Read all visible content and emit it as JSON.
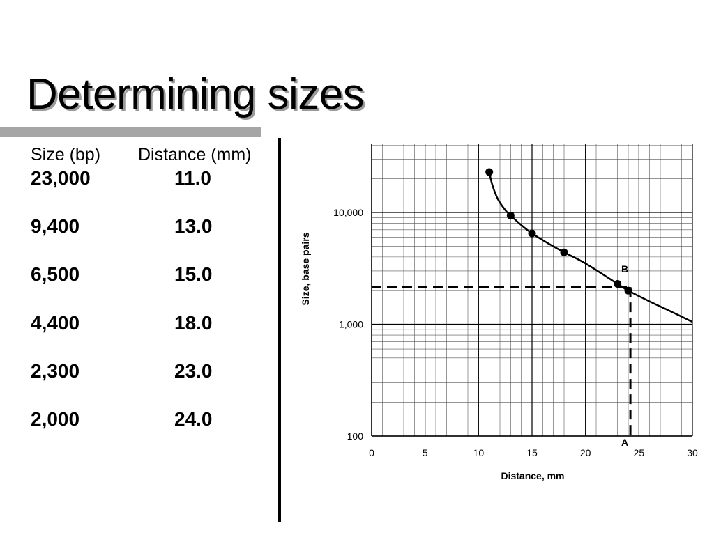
{
  "slide": {
    "title": "Determining sizes"
  },
  "table": {
    "headers": {
      "size": "Size (bp)",
      "distance": "Distance (mm)"
    },
    "rows": [
      {
        "size": "23,000",
        "distance": "11.0"
      },
      {
        "size": "9,400",
        "distance": "13.0"
      },
      {
        "size": "6,500",
        "distance": "15.0"
      },
      {
        "size": "4,400",
        "distance": "18.0"
      },
      {
        "size": "2,300",
        "distance": "23.0"
      },
      {
        "size": "2,000",
        "distance": "24.0"
      }
    ]
  },
  "chart_data": {
    "type": "scatter",
    "title": "",
    "xlabel": "Distance, mm",
    "ylabel": "Size, base pairs",
    "xlim": [
      0,
      30
    ],
    "ylim": [
      100,
      40000
    ],
    "y_scale": "log",
    "x_ticks": [
      0,
      5,
      10,
      15,
      20,
      25,
      30
    ],
    "y_ticks": [
      100,
      1000,
      10000
    ],
    "y_tick_labels": [
      "100",
      "1,000",
      "10,000"
    ],
    "grid": true,
    "series": [
      {
        "x": [
          11,
          13,
          15,
          18,
          23,
          24
        ],
        "y": [
          23000,
          9400,
          6500,
          4400,
          2300,
          2000
        ]
      }
    ],
    "curve": {
      "x": [
        11,
        11.3,
        11.8,
        12.5,
        13,
        14,
        15,
        16.5,
        18,
        20,
        23,
        24,
        26,
        28,
        30
      ],
      "y": [
        23000,
        17500,
        13200,
        10500,
        9400,
        7700,
        6500,
        5300,
        4400,
        3500,
        2300,
        2000,
        1600,
        1300,
        1050
      ]
    },
    "reference_lines": [
      {
        "label": "B",
        "y": 2150,
        "x_from": 0,
        "x_to": 24.2
      },
      {
        "label": "A",
        "x": 24.2,
        "y_from": 2150,
        "y_to": 100
      }
    ]
  }
}
